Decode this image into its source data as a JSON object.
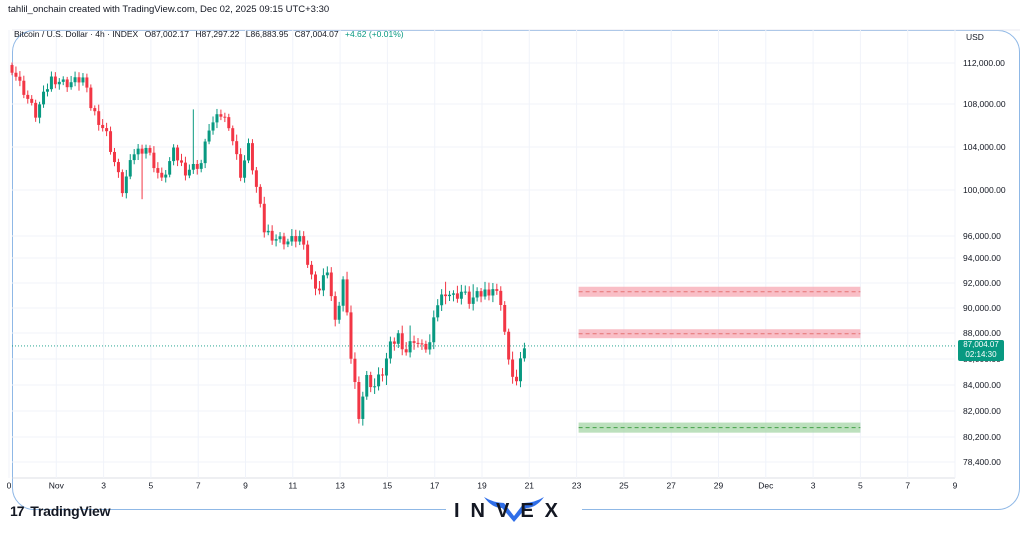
{
  "header": {
    "credit": "tahlil_onchain created with TradingView.com, Dec 02, 2025 09:15 UTC+3:30",
    "symbol": "Bitcoin / U.S. Dollar · 4h · INDEX",
    "open": "O87,002.17",
    "high": "H87,297.22",
    "low": "L86,883.95",
    "close": "C87,004.07",
    "change": "+4.62 (+0.01%)",
    "currency": "USD"
  },
  "price_tag": {
    "price": "87,004.07",
    "countdown": "02:14:30"
  },
  "footer": {
    "brand_mark": "17",
    "brand_name": "TradingView",
    "logo_text": "INVEX"
  },
  "colors": {
    "up": "#089981",
    "down": "#f23645",
    "resistance": "#f7a8b3",
    "support": "#a5d6a7",
    "frame": "#8fb8e6"
  },
  "chart_data": {
    "type": "candlestick",
    "interval": "4h",
    "ylim": [
      78000,
      113000
    ],
    "y_ticks": [
      "112,000.00",
      "108,000.00",
      "104,000.00",
      "100,000.00",
      "96,000.00",
      "94,000.00",
      "92,000.00",
      "90,000.00",
      "88,000.00",
      "86,000.00",
      "84,000.00",
      "82,000.00",
      "80,200.00",
      "78,400.00"
    ],
    "x_ticks": [
      "0",
      "Nov",
      "3",
      "5",
      "7",
      "9",
      "11",
      "13",
      "15",
      "17",
      "19",
      "21",
      "23",
      "25",
      "27",
      "29",
      "Dec",
      "3",
      "5",
      "7",
      "9"
    ],
    "last_price": 87004.07,
    "zones": [
      {
        "type": "resistance",
        "low": 90900,
        "high": 91700,
        "from": "23",
        "to": "5"
      },
      {
        "type": "resistance",
        "low": 87600,
        "high": 88300,
        "from": "23",
        "to": "5"
      },
      {
        "type": "support",
        "low": 80500,
        "high": 81200,
        "from": "23",
        "to": "5"
      }
    ],
    "path": [
      [
        0,
        111500
      ],
      [
        6,
        107000
      ],
      [
        10,
        110500
      ],
      [
        14,
        110000
      ],
      [
        18,
        110500
      ],
      [
        20,
        107800
      ],
      [
        24,
        105200
      ],
      [
        28,
        100000
      ],
      [
        31,
        103500
      ],
      [
        34,
        104000
      ],
      [
        38,
        100800
      ],
      [
        41,
        103500
      ],
      [
        44,
        101800
      ],
      [
        48,
        102500
      ],
      [
        50,
        105800
      ],
      [
        53,
        107000
      ],
      [
        55,
        106200
      ],
      [
        58,
        101500
      ],
      [
        60,
        104000
      ],
      [
        62,
        100200
      ],
      [
        64,
        96500
      ],
      [
        67,
        95800
      ],
      [
        70,
        95500
      ],
      [
        73,
        95900
      ],
      [
        76,
        92500
      ],
      [
        78,
        91500
      ],
      [
        80,
        93200
      ],
      [
        82,
        88700
      ],
      [
        84,
        92200
      ],
      [
        86,
        86200
      ],
      [
        88,
        81900
      ],
      [
        90,
        84500
      ],
      [
        92,
        83900
      ],
      [
        94,
        85000
      ],
      [
        96,
        86900
      ],
      [
        98,
        87800
      ],
      [
        100,
        86600
      ],
      [
        102,
        87600
      ],
      [
        104,
        86800
      ],
      [
        106,
        87200
      ],
      [
        108,
        90400
      ],
      [
        110,
        91400
      ],
      [
        112,
        90900
      ],
      [
        114,
        91300
      ],
      [
        116,
        90600
      ],
      [
        118,
        90900
      ],
      [
        120,
        91300
      ],
      [
        122,
        91600
      ],
      [
        124,
        90600
      ],
      [
        126,
        85600
      ],
      [
        128,
        84200
      ],
      [
        130,
        87000
      ]
    ],
    "spikes": [
      [
        17,
        111000,
        109300
      ],
      [
        33,
        104200,
        99200
      ],
      [
        46,
        107500,
        104600
      ],
      [
        95,
        86000,
        84000
      ],
      [
        110,
        92100,
        90300
      ],
      [
        117,
        91900,
        90200
      ],
      [
        101,
        88600,
        86200
      ]
    ]
  }
}
